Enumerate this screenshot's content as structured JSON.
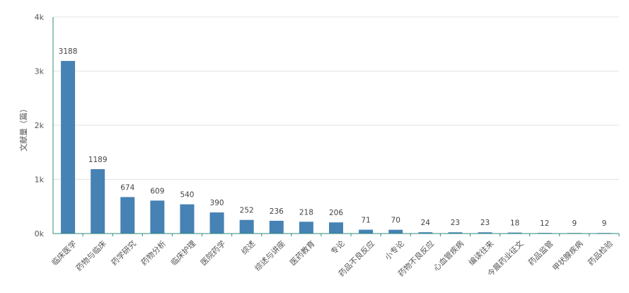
{
  "chart_data": {
    "type": "bar",
    "ylabel": "文献量（篇）",
    "ylim": [
      0,
      4000
    ],
    "y_ticks": [
      {
        "value": 0,
        "label": "0k"
      },
      {
        "value": 1000,
        "label": "1k"
      },
      {
        "value": 2000,
        "label": "2k"
      },
      {
        "value": 3000,
        "label": "3k"
      },
      {
        "value": 4000,
        "label": "4k"
      }
    ],
    "categories": [
      "临床医学",
      "药物与临床",
      "药学研究",
      "药物分析",
      "临床护理",
      "医院药学",
      "综述",
      "综述与讲座",
      "医药教育",
      "专论",
      "药品不良反应",
      "小专论",
      "药物不良反应",
      "心血管疾病",
      "编读往来",
      "今晨药业征文",
      "药品监管",
      "甲状腺疾病",
      "药品检验"
    ],
    "values": [
      3188,
      1189,
      674,
      609,
      540,
      390,
      252,
      236,
      218,
      206,
      71,
      70,
      24,
      23,
      23,
      18,
      12,
      9,
      9
    ],
    "grid": true,
    "legend": false,
    "colors": {
      "bar": "#4682b4",
      "grid": "#e3e3e3",
      "axis": "#2e8b79"
    }
  }
}
